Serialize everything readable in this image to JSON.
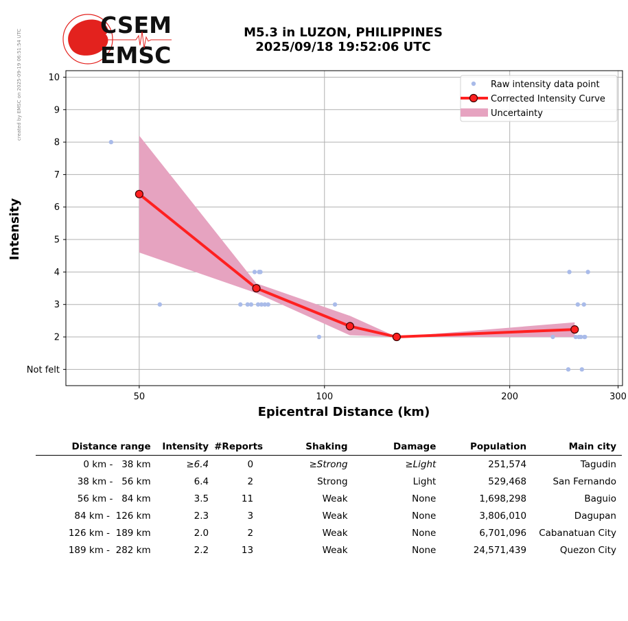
{
  "credit": "created by EMSC on 2025-09-19 06:51:54 UTC",
  "logo": {
    "line1": "CSEM",
    "line2": "EMSC",
    "brand_color": "#e3221e"
  },
  "title": {
    "line1": "M5.3 in LUZON, PHILIPPINES",
    "line2": "2025/09/18 19:52:06 UTC"
  },
  "chart_data": {
    "type": "line",
    "xlabel": "Epicentral Distance (km)",
    "ylabel": "Intensity",
    "xscale": "log",
    "xlim": [
      38,
      305
    ],
    "ylim": [
      0.5,
      10.2
    ],
    "xticks": [
      50,
      100,
      200,
      300
    ],
    "xtick_labels": [
      "50",
      "100",
      "200",
      "300"
    ],
    "yticks": [
      1,
      2,
      3,
      4,
      5,
      6,
      7,
      8,
      9,
      10
    ],
    "ytick_labels": [
      "Not felt",
      "2",
      "3",
      "4",
      "5",
      "6",
      "7",
      "8",
      "9",
      "10"
    ],
    "grid": true,
    "legend_position": "top-right",
    "legend": [
      "Raw intensity data point",
      "Corrected Intensity Curve",
      "Uncertainty"
    ],
    "raw_points": {
      "color": "#a9bbe9",
      "x": [
        45,
        54,
        73,
        75,
        76,
        77,
        78,
        78.3,
        78.7,
        79,
        80,
        81,
        98,
        104,
        235,
        249,
        250,
        256,
        258,
        259,
        261,
        262,
        264,
        264.5,
        265,
        268
      ],
      "y": [
        8,
        3,
        3,
        3,
        3,
        4,
        3,
        4,
        4,
        3,
        3,
        3,
        2,
        3,
        2,
        1,
        4,
        2,
        3,
        2,
        2,
        1,
        3,
        2,
        2,
        4
      ]
    },
    "corrected_curve": {
      "color": "#ff2020",
      "x": [
        50,
        77.5,
        110,
        131,
        255
      ],
      "y": [
        6.4,
        3.5,
        2.33,
        2.0,
        2.23
      ]
    },
    "uncertainty": {
      "color": "#e6a3c0",
      "x": [
        50,
        77.5,
        110,
        131,
        255
      ],
      "upper": [
        8.2,
        3.65,
        2.65,
        2.0,
        2.45
      ],
      "lower": [
        4.6,
        3.35,
        2.05,
        2.0,
        2.0
      ]
    }
  },
  "table": {
    "headers": [
      "Distance range",
      "Intensity",
      "#Reports",
      "Shaking",
      "Damage",
      "Population",
      "Main city"
    ],
    "rows": [
      {
        "range": "0 km -   38 km",
        "intensity": "≥6.4",
        "reports": "0",
        "shaking": "≥Strong",
        "damage": "≥Light",
        "population": "251,574",
        "city": "Tagudin",
        "italic": true
      },
      {
        "range": "38 km -   56 km",
        "intensity": "6.4",
        "reports": "2",
        "shaking": "Strong",
        "damage": "Light",
        "population": "529,468",
        "city": "San Fernando",
        "italic": false
      },
      {
        "range": "56 km -   84 km",
        "intensity": "3.5",
        "reports": "11",
        "shaking": "Weak",
        "damage": "None",
        "population": "1,698,298",
        "city": "Baguio",
        "italic": false
      },
      {
        "range": "84 km -  126 km",
        "intensity": "2.3",
        "reports": "3",
        "shaking": "Weak",
        "damage": "None",
        "population": "3,806,010",
        "city": "Dagupan",
        "italic": false
      },
      {
        "range": "126 km -  189 km",
        "intensity": "2.0",
        "reports": "2",
        "shaking": "Weak",
        "damage": "None",
        "population": "6,701,096",
        "city": "Cabanatuan City",
        "italic": false
      },
      {
        "range": "189 km -  282 km",
        "intensity": "2.2",
        "reports": "13",
        "shaking": "Weak",
        "damage": "None",
        "population": "24,571,439",
        "city": "Quezon City",
        "italic": false
      }
    ]
  }
}
